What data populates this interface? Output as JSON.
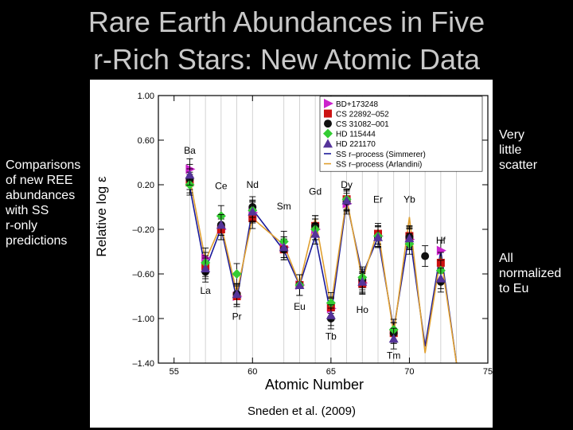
{
  "slide": {
    "title": "Rare Earth Abundances in Five\nr-Rich Stars: New Atomic Data",
    "left_note": "Comparisons\nof new REE\nabundances\nwith SS\nr-only\npredictions",
    "right_note_top": "Very\nlittle\nscatter",
    "right_note_bottom": "All\nnormalized\nto Eu",
    "citation": "Sneden et al. (2009)"
  },
  "chart_data": {
    "type": "line",
    "xlabel": "Atomic Number",
    "ylabel": "Relative log ε",
    "xlim": [
      54,
      75
    ],
    "ylim": [
      -1.4,
      1.0
    ],
    "x_ticks": [
      55,
      60,
      65,
      70,
      75
    ],
    "y_ticks": [
      1.0,
      0.6,
      0.2,
      -0.2,
      -0.6,
      -1.0,
      -1.4
    ],
    "y_tick_labels": [
      "1.00",
      "0.60",
      "0.20",
      "–0.20",
      "–0.60",
      "–1.00",
      "–1.40"
    ],
    "legend_position": "top-right",
    "element_labels": [
      {
        "text": "Ba",
        "x": 56,
        "y": 0.48
      },
      {
        "text": "La",
        "x": 57,
        "y": -0.78
      },
      {
        "text": "Ce",
        "x": 58,
        "y": 0.16
      },
      {
        "text": "Pr",
        "x": 59,
        "y": -1.01
      },
      {
        "text": "Nd",
        "x": 60,
        "y": 0.17
      },
      {
        "text": "Sm",
        "x": 62,
        "y": -0.02
      },
      {
        "text": "Eu",
        "x": 63,
        "y": -0.92
      },
      {
        "text": "Gd",
        "x": 64,
        "y": 0.11
      },
      {
        "text": "Tb",
        "x": 65,
        "y": -1.19
      },
      {
        "text": "Dy",
        "x": 66,
        "y": 0.17
      },
      {
        "text": "Ho",
        "x": 67,
        "y": -0.95
      },
      {
        "text": "Er",
        "x": 68,
        "y": 0.04
      },
      {
        "text": "Tm",
        "x": 69,
        "y": -1.36
      },
      {
        "text": "Yb",
        "x": 70,
        "y": 0.04
      },
      {
        "text": "Hf",
        "x": 72,
        "y": -0.33
      }
    ],
    "x_lines": [
      56,
      57,
      58,
      59,
      60,
      62,
      63,
      64,
      65,
      66,
      67,
      68,
      69,
      70,
      71,
      72,
      73
    ],
    "series": [
      {
        "name": "SS r–process (Simmerer)",
        "kind": "line",
        "color": "#1a1a9a",
        "values": [
          0.18,
          -0.56,
          -0.19,
          -0.83,
          -0.02,
          -0.39,
          -0.7,
          -0.26,
          -0.97,
          0.05,
          -0.61,
          -0.27,
          -1.1,
          -0.23,
          -1.25,
          -0.39,
          -1.45
        ]
      },
      {
        "name": "SS r–process (Arlandini)",
        "kind": "line",
        "color": "#e0a030",
        "values": [
          0.26,
          -0.48,
          -0.16,
          -0.77,
          -0.1,
          -0.34,
          -0.69,
          -0.1,
          -0.89,
          0.08,
          -0.66,
          -0.2,
          -1.14,
          -0.09,
          -1.31,
          -0.44,
          -1.45
        ]
      },
      {
        "name": "BD+173248",
        "kind": "points",
        "marker": "tri-right",
        "color": "#cc22cc",
        "x": [
          56,
          57,
          58,
          59,
          60,
          62,
          63,
          64,
          65,
          66,
          67,
          68,
          70,
          72
        ],
        "values": [
          0.34,
          -0.46,
          -0.2,
          -0.8,
          -0.05,
          -0.36,
          -0.7,
          -0.2,
          -0.91,
          0.03,
          -0.68,
          -0.26,
          -0.29,
          -0.39
        ]
      },
      {
        "name": "CS 22892–052",
        "kind": "points",
        "marker": "square",
        "color": "#cc1111",
        "x": [
          56,
          57,
          58,
          59,
          60,
          62,
          63,
          64,
          65,
          66,
          67,
          68,
          69,
          70,
          72
        ],
        "values": [
          0.22,
          -0.53,
          -0.2,
          -0.8,
          -0.1,
          -0.38,
          -0.7,
          -0.17,
          -0.9,
          0.07,
          -0.69,
          -0.24,
          -1.13,
          -0.26,
          -0.5
        ]
      },
      {
        "name": "CS 31082–001",
        "kind": "points",
        "marker": "circle",
        "color": "#111111",
        "x": [
          56,
          57,
          58,
          59,
          60,
          62,
          63,
          64,
          65,
          66,
          67,
          68,
          69,
          70,
          71,
          72
        ],
        "values": [
          0.25,
          -0.58,
          -0.16,
          -0.78,
          0.0,
          -0.38,
          -0.7,
          -0.17,
          -1.0,
          0.05,
          -0.65,
          -0.27,
          -1.13,
          -0.27,
          -0.44,
          -0.67
        ]
      },
      {
        "name": "HD 115444",
        "kind": "points",
        "marker": "diamond",
        "color": "#33cc33",
        "x": [
          56,
          57,
          58,
          59,
          60,
          62,
          63,
          64,
          65,
          66,
          67,
          68,
          69,
          70,
          72
        ],
        "values": [
          0.2,
          -0.5,
          -0.08,
          -0.6,
          -0.03,
          -0.31,
          -0.7,
          -0.2,
          -0.86,
          0.07,
          -0.63,
          -0.26,
          -1.1,
          -0.33,
          -0.57
        ]
      },
      {
        "name": "HD 221170",
        "kind": "points",
        "marker": "triangle",
        "color": "#553399",
        "x": [
          56,
          57,
          58,
          59,
          60,
          62,
          63,
          64,
          65,
          66,
          67,
          68,
          69,
          70,
          72
        ],
        "values": [
          0.29,
          -0.55,
          -0.16,
          -0.78,
          -0.04,
          -0.36,
          -0.7,
          -0.24,
          -0.97,
          0.06,
          -0.67,
          -0.27,
          -1.18,
          -0.28,
          -0.64
        ]
      }
    ]
  }
}
